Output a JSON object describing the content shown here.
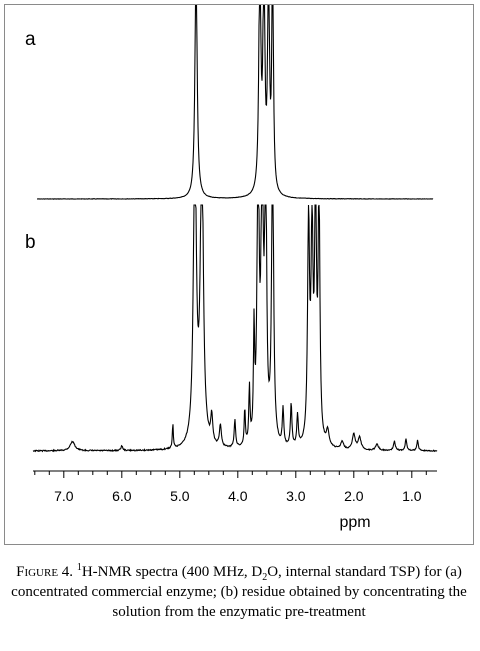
{
  "chart_data": [
    {
      "type": "line",
      "panel_label": "a",
      "xlabel": "ppm",
      "xlim": [
        7.6,
        0.6
      ],
      "x_reversed": true,
      "peaks": [
        {
          "ppm": 4.72,
          "height": 1.0,
          "width": 0.022
        },
        {
          "ppm": 3.62,
          "height": 1.0,
          "width": 0.02
        },
        {
          "ppm": 3.55,
          "height": 1.0,
          "width": 0.018
        },
        {
          "ppm": 3.47,
          "height": 0.95,
          "width": 0.018
        },
        {
          "ppm": 3.4,
          "height": 1.0,
          "width": 0.016
        }
      ]
    },
    {
      "type": "line",
      "panel_label": "b",
      "xlabel": "ppm",
      "xlim": [
        7.6,
        0.6
      ],
      "x_reversed": true,
      "xticks": [
        "7.0",
        "6.0",
        "5.0",
        "4.0",
        "3.0",
        "2.0",
        "1.0"
      ],
      "xtick_values": [
        7.0,
        6.0,
        5.0,
        4.0,
        3.0,
        2.0,
        1.0
      ],
      "peaks": [
        {
          "ppm": 6.85,
          "height": 0.03,
          "width": 0.05
        },
        {
          "ppm": 6.0,
          "height": 0.015,
          "width": 0.02
        },
        {
          "ppm": 5.12,
          "height": 0.08,
          "width": 0.01
        },
        {
          "ppm": 4.74,
          "height": 1.0,
          "width": 0.03
        },
        {
          "ppm": 4.62,
          "height": 1.0,
          "width": 0.03
        },
        {
          "ppm": 4.45,
          "height": 0.09,
          "width": 0.02
        },
        {
          "ppm": 4.3,
          "height": 0.07,
          "width": 0.02
        },
        {
          "ppm": 4.05,
          "height": 0.09,
          "width": 0.015
        },
        {
          "ppm": 3.88,
          "height": 0.12,
          "width": 0.012
        },
        {
          "ppm": 3.8,
          "height": 0.18,
          "width": 0.012
        },
        {
          "ppm": 3.72,
          "height": 0.35,
          "width": 0.012
        },
        {
          "ppm": 3.65,
          "height": 1.0,
          "width": 0.02
        },
        {
          "ppm": 3.58,
          "height": 1.0,
          "width": 0.02
        },
        {
          "ppm": 3.52,
          "height": 1.0,
          "width": 0.018
        },
        {
          "ppm": 3.4,
          "height": 1.0,
          "width": 0.02
        },
        {
          "ppm": 3.22,
          "height": 0.12,
          "width": 0.015
        },
        {
          "ppm": 3.08,
          "height": 0.14,
          "width": 0.015
        },
        {
          "ppm": 2.97,
          "height": 0.1,
          "width": 0.015
        },
        {
          "ppm": 2.78,
          "height": 0.72,
          "width": 0.02
        },
        {
          "ppm": 2.72,
          "height": 0.68,
          "width": 0.02
        },
        {
          "ppm": 2.66,
          "height": 0.85,
          "width": 0.018
        },
        {
          "ppm": 2.6,
          "height": 0.82,
          "width": 0.018
        },
        {
          "ppm": 2.45,
          "height": 0.05,
          "width": 0.03
        },
        {
          "ppm": 2.2,
          "height": 0.025,
          "width": 0.03
        },
        {
          "ppm": 2.0,
          "height": 0.05,
          "width": 0.03
        },
        {
          "ppm": 1.9,
          "height": 0.04,
          "width": 0.03
        },
        {
          "ppm": 1.6,
          "height": 0.02,
          "width": 0.03
        },
        {
          "ppm": 1.3,
          "height": 0.03,
          "width": 0.02
        },
        {
          "ppm": 1.1,
          "height": 0.04,
          "width": 0.015
        },
        {
          "ppm": 0.9,
          "height": 0.035,
          "width": 0.015
        }
      ]
    }
  ],
  "caption": {
    "fig_tag": "Figure 4.",
    "nucleus_mass": "1",
    "part1": "H-NMR spectra (400 MHz, D",
    "subscript": "2",
    "part2": "O, internal standard TSP) for (a) concentrated commercial enzyme; (b) residue obtained by concentrating the solution from the enzymatic pre-treatment"
  }
}
